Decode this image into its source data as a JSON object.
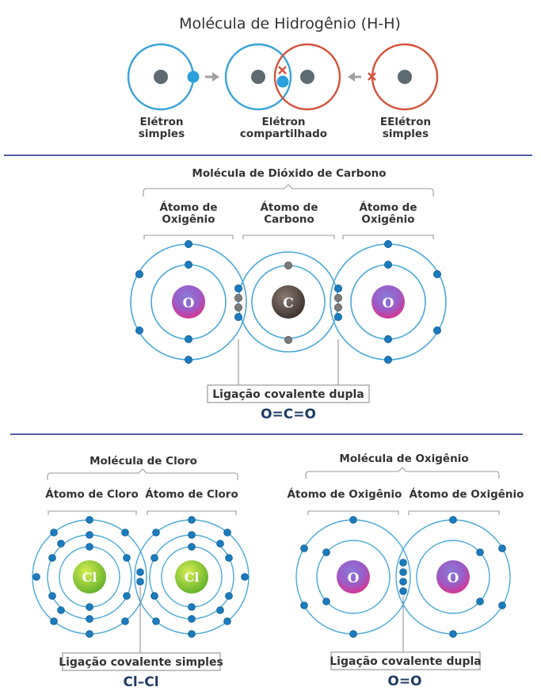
{
  "hydrogen": {
    "title": "Molécula de Hidrogênio (H-H)",
    "left_label": [
      "Elétron",
      "simples"
    ],
    "middle_label": [
      "Elétron",
      "compartilhado"
    ],
    "right_label": [
      "EElétron",
      "simples"
    ]
  },
  "co2": {
    "title": "Molécula de Dióxido de Carbono",
    "atom_left": [
      "Átomo de",
      "Oxigênio"
    ],
    "atom_middle": [
      "Átomo de",
      "Carbono"
    ],
    "atom_right": [
      "Átomo de",
      "Oxigênio"
    ],
    "nucleus_left": "O",
    "nucleus_middle": "C",
    "nucleus_right": "O",
    "bond_label": "Ligação covalente dupla",
    "formula": "O=C=O"
  },
  "chlorine": {
    "title": "Molécula de Cloro",
    "atom_left": "Átomo de Cloro",
    "atom_right": "Átomo de Cloro",
    "nucleus": "Cl",
    "bond_label": "Ligação covalente simples",
    "formula": "Cl–Cl"
  },
  "oxygen": {
    "title": "Molécula de Oxigênio",
    "atom_left": "Átomo de Oxigênio",
    "atom_right": "Átomo de Oxigênio",
    "nucleus": "O",
    "bond_label": "Ligação covalente dupla",
    "formula": "O=O"
  },
  "colors": {
    "orbit": "#4aa8d8",
    "electron": "#1b7bbd",
    "hydrogen_left_ring": "#3aa3d9",
    "hydrogen_right_ring": "#d4533a",
    "separator": "#1a2a8a",
    "formula": "#1f3c66"
  },
  "icons": [
    "arrow-right-icon",
    "arrow-left-icon",
    "cross-mark-icon"
  ]
}
